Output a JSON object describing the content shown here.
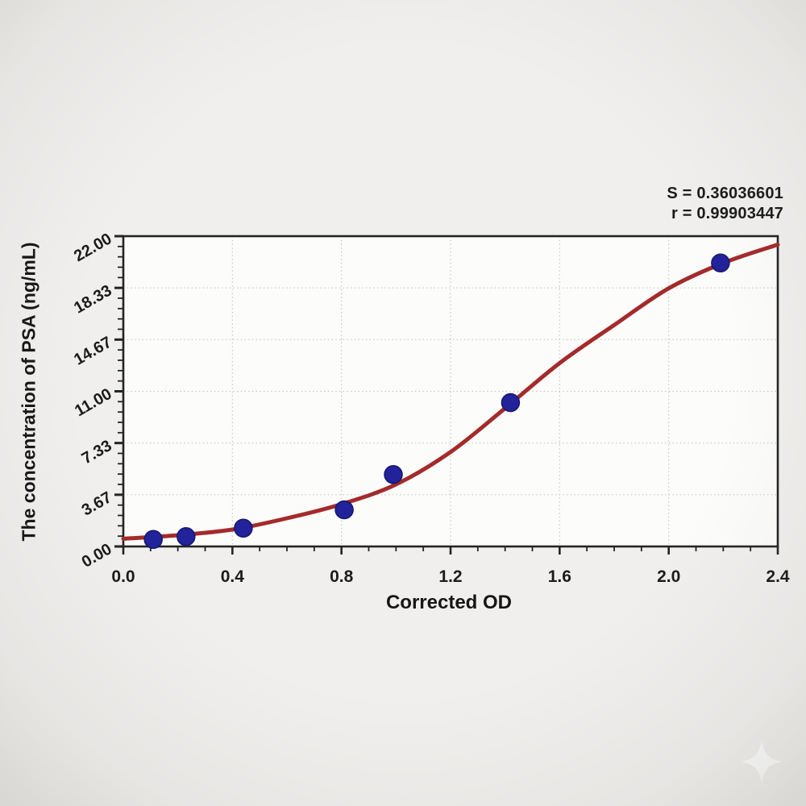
{
  "figure": {
    "background_color": "#f0efed",
    "plot_background_color": "#fcfcfa",
    "frame_color": "#242424",
    "grid_color": "#c6c6c6",
    "text_color": "#1b1b1b",
    "watermark_icon": "sparkle-four-point-star",
    "watermark_color": "#ffffff"
  },
  "chart_data": {
    "type": "scatter",
    "title": "",
    "xlabel": "Corrected OD",
    "ylabel": "The concentration of PSA (ng/mL)",
    "xlim": [
      0,
      2.4
    ],
    "ylim": [
      0,
      22
    ],
    "x_tick_values": [
      0,
      0.4,
      0.8,
      1.2,
      1.6,
      2.0,
      2.4
    ],
    "x_tick_labels": [
      "0.0",
      "0.4",
      "0.8",
      "1.2",
      "1.6",
      "2.0",
      "2.4"
    ],
    "x_minor_step": 0.1,
    "y_tick_values": [
      0,
      3.6667,
      7.3333,
      11,
      14.6667,
      18.3333,
      22
    ],
    "y_tick_labels": [
      "0.00",
      "3.67",
      "7.33",
      "11.00",
      "14.67",
      "18.33",
      "22.00"
    ],
    "y_minor_step": 0.73333,
    "grid": "dotted gridlines at major ticks, both axes",
    "legend_position": "none",
    "stats": {
      "s": "S = 0.36036601",
      "r": "r = 0.99903447"
    },
    "series": [
      {
        "name": "fitted standard curve (4PL sigmoid)",
        "type": "line",
        "color": "#a32b2b",
        "line_width": 5,
        "points": [
          [
            0,
            0.55
          ],
          [
            0.2,
            0.8
          ],
          [
            0.4,
            1.2
          ],
          [
            0.6,
            2.0
          ],
          [
            0.8,
            3.0
          ],
          [
            1.0,
            4.4
          ],
          [
            1.2,
            6.7
          ],
          [
            1.4,
            9.8
          ],
          [
            1.6,
            13.0
          ],
          [
            1.8,
            15.7
          ],
          [
            2.0,
            18.3
          ],
          [
            2.2,
            20.1
          ],
          [
            2.4,
            21.4
          ]
        ]
      },
      {
        "name": "standard data points",
        "type": "scatter",
        "color": "#22229a",
        "marker_edge_color": "#17176e",
        "marker_radius": 11,
        "points": [
          [
            0.11,
            0.5
          ],
          [
            0.23,
            0.7
          ],
          [
            0.44,
            1.3
          ],
          [
            0.81,
            2.6
          ],
          [
            0.99,
            5.1
          ],
          [
            1.42,
            10.2
          ],
          [
            2.19,
            20.1
          ]
        ]
      }
    ]
  }
}
